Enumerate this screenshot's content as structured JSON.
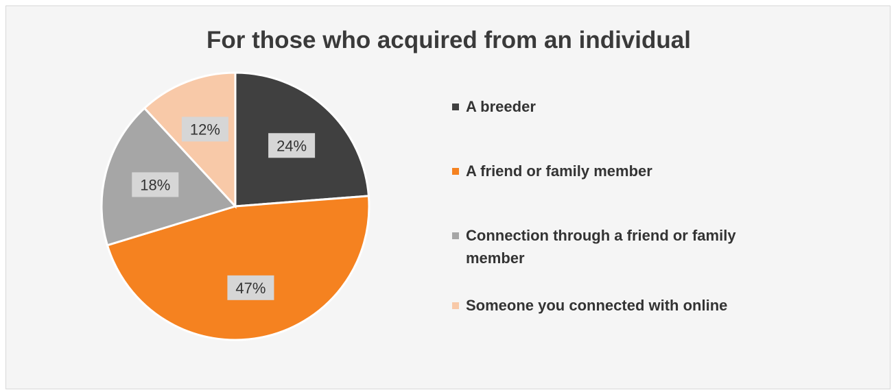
{
  "chart_data": {
    "type": "pie",
    "title": "For those who acquired from an individual",
    "slices": [
      {
        "label": "A breeder",
        "value": 24,
        "value_label": "24%",
        "color": "#404040"
      },
      {
        "label": "A friend or family member",
        "value": 47,
        "value_label": "47%",
        "color": "#f58220"
      },
      {
        "label": "Connection through a friend or family member",
        "value": 18,
        "value_label": "18%",
        "color": "#a6a6a6"
      },
      {
        "label": "Someone you connected with online",
        "value": 12,
        "value_label": "12%",
        "color": "#f8c9a8"
      }
    ],
    "legend_position": "right",
    "start_angle": "12 o'clock, clockwise"
  }
}
